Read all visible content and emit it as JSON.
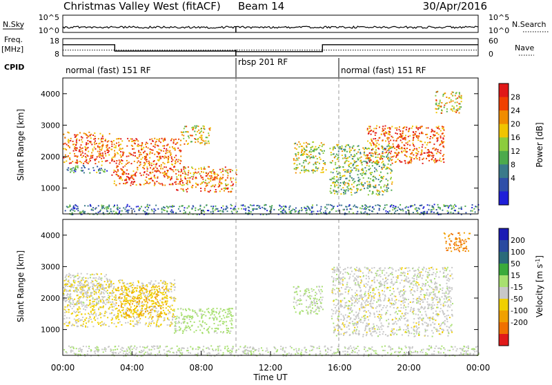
{
  "header": {
    "station": "Christmas Valley West (fitACF)",
    "beam": "Beam 14",
    "date": "30/Apr/2016"
  },
  "nsky_panel": {
    "left_label": "N.Sky",
    "right_label": "N.Search",
    "left_ticks": [
      "10^5",
      "10^0"
    ],
    "right_ticks": [
      "10^5",
      "10^0"
    ]
  },
  "freq_panel": {
    "left_label_1": "Freq.",
    "left_label_2": "[MHz]",
    "right_label": "Nave",
    "left_ticks": [
      "18",
      "8"
    ],
    "right_ticks": [
      "60",
      "0"
    ],
    "freq_steps": [
      {
        "from": 0,
        "to": 3,
        "mhz": 14.5
      },
      {
        "from": 3,
        "to": 10,
        "mhz": 10.8
      },
      {
        "from": 10,
        "to": 15,
        "mhz": 10.5
      },
      {
        "from": 15,
        "to": 24,
        "mhz": 14.5
      }
    ],
    "nave_level": 20
  },
  "cpid_panel": {
    "label": "CPID",
    "segments": [
      {
        "label": "normal (fast) 151 RF",
        "start": 0,
        "end": 10
      },
      {
        "label": "rbsp 201 RF",
        "start": 10,
        "end": 16
      },
      {
        "label": "normal (fast) 151 RF",
        "start": 16,
        "end": 24
      }
    ]
  },
  "axes": {
    "ylabel": "Slant Range [km]",
    "xlabel": "Time UT",
    "yticks": [
      "1000",
      "2000",
      "3000",
      "4000"
    ],
    "xticks": [
      "00:00",
      "04:00",
      "08:00",
      "12:00",
      "16:00",
      "20:00",
      "00:00"
    ]
  },
  "power_scale": {
    "title": "Power [dB]",
    "ticks": [
      "4",
      "8",
      "12",
      "16",
      "20",
      "24",
      "28"
    ],
    "colors": [
      "#1f1fd8",
      "#2f4fa8",
      "#3a7a8a",
      "#4caa4c",
      "#8ccc3c",
      "#f0c400",
      "#f08c00",
      "#f04000",
      "#e01818"
    ]
  },
  "velocity_scale": {
    "title_main": "Velocity [m s",
    "title_sup": "-1",
    "title_end": "]",
    "ticks": [
      "200",
      "100",
      "50",
      "15",
      "-15",
      "-50",
      "-100",
      "-200"
    ],
    "colors": [
      "#1a1ab4",
      "#2a4aa0",
      "#2a6a7a",
      "#3aaa3a",
      "#a8e070",
      "#c8c8c8",
      "#f0d000",
      "#f0a000",
      "#f07000",
      "#e01a1a"
    ]
  },
  "chart_data": {
    "type": "heatmap",
    "title": "Christmas Valley West (fitACF)",
    "x_label": "Time UT",
    "y_label": "Slant Range [km]",
    "x_range_hours": [
      0,
      24
    ],
    "y_range_km": [
      180,
      4500
    ],
    "x_ticks": [
      "00:00",
      "04:00",
      "08:00",
      "12:00",
      "16:00",
      "20:00",
      "00:00"
    ],
    "y_ticks": [
      1000,
      2000,
      3000,
      4000
    ],
    "panels": [
      {
        "name": "Power [dB]",
        "color_range": [
          0,
          30
        ],
        "echo_regions": [
          {
            "t0": 0.0,
            "t1": 2.8,
            "r0": 1800,
            "r1": 2800,
            "value": 24
          },
          {
            "t0": 0.2,
            "t1": 2.6,
            "r0": 1500,
            "r1": 1750,
            "value": 10
          },
          {
            "t0": 2.8,
            "t1": 6.8,
            "r0": 1100,
            "r1": 2600,
            "value": 24
          },
          {
            "t0": 6.8,
            "t1": 8.5,
            "r0": 2400,
            "r1": 3000,
            "value": 18
          },
          {
            "t0": 6.5,
            "t1": 10.0,
            "r0": 900,
            "r1": 1700,
            "value": 22
          },
          {
            "t0": 13.3,
            "t1": 15.2,
            "r0": 1500,
            "r1": 2500,
            "value": 16
          },
          {
            "t0": 15.4,
            "t1": 19.0,
            "r0": 800,
            "r1": 2400,
            "value": 14
          },
          {
            "t0": 17.5,
            "t1": 22.0,
            "r0": 1800,
            "r1": 3000,
            "value": 24
          },
          {
            "t0": 21.5,
            "t1": 23.0,
            "r0": 3400,
            "r1": 4100,
            "value": 18
          },
          {
            "t0": 0.0,
            "t1": 24.0,
            "r0": 180,
            "r1": 500,
            "value": 8
          }
        ]
      },
      {
        "name": "Velocity [m s-1]",
        "color_range": [
          -200,
          200
        ],
        "echo_regions": [
          {
            "t0": 0.0,
            "t1": 2.8,
            "r0": 1800,
            "r1": 2800,
            "value": 0
          },
          {
            "t0": 0.0,
            "t1": 6.5,
            "r0": 1100,
            "r1": 2600,
            "value": -15
          },
          {
            "t0": 3.0,
            "t1": 6.0,
            "r0": 1400,
            "r1": 2400,
            "value": -50
          },
          {
            "t0": 6.4,
            "t1": 9.8,
            "r0": 900,
            "r1": 1700,
            "value": 30
          },
          {
            "t0": 13.3,
            "t1": 15.0,
            "r0": 1500,
            "r1": 2400,
            "value": 20
          },
          {
            "t0": 15.5,
            "t1": 22.5,
            "r0": 800,
            "r1": 3000,
            "value": 0
          },
          {
            "t0": 22.0,
            "t1": 23.5,
            "r0": 3500,
            "r1": 4100,
            "value": -100
          },
          {
            "t0": 0.0,
            "t1": 24.0,
            "r0": 180,
            "r1": 500,
            "value": 10
          }
        ]
      }
    ]
  }
}
